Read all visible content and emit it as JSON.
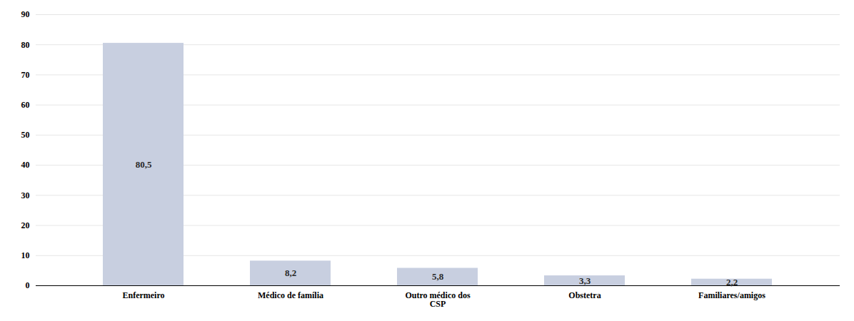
{
  "chart_data": {
    "type": "bar",
    "categories": [
      "Enfermeiro",
      "Médico de família",
      "Outro médico dos\nCSP",
      "Obstetra",
      "Familiares/amigos"
    ],
    "values": [
      80.5,
      8.2,
      5.8,
      3.3,
      2.2
    ],
    "value_labels": [
      "80,5",
      "8,2",
      "5,8",
      "3,3",
      "2,2"
    ],
    "data_labels": true,
    "color": "#c8cfe0",
    "ylim": [
      0,
      90
    ],
    "yticks": [
      0,
      10,
      20,
      30,
      40,
      50,
      60,
      70,
      80,
      90
    ],
    "grid": true
  }
}
